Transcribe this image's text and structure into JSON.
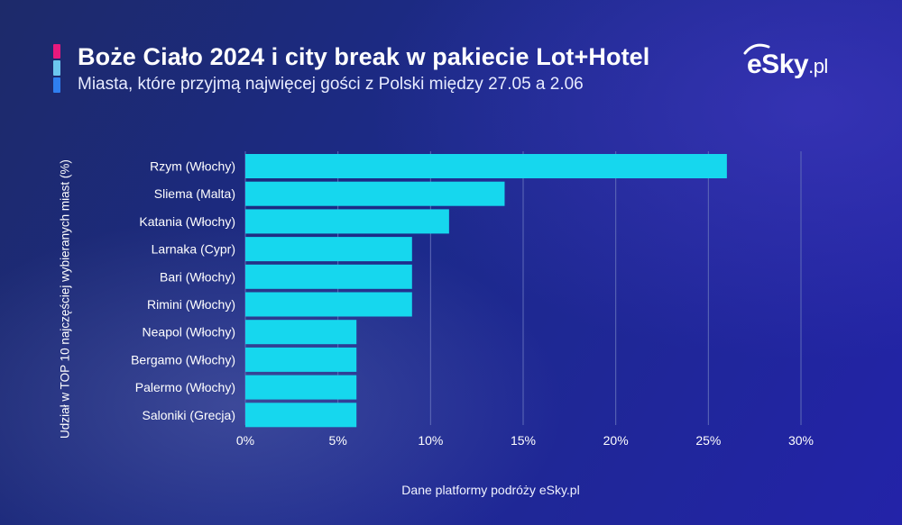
{
  "header": {
    "title": "Boże Ciało 2024 i city break w pakiecie Lot+Hotel",
    "subtitle": "Miasta, które przyjmą najwięcej gości z Polski między 27.05 a 2.06",
    "accent_colors": [
      "#e8197d",
      "#6cc6ee",
      "#2f7ff0"
    ]
  },
  "logo": {
    "text": "eSky",
    "suffix": ".pl"
  },
  "footer": {
    "source": "Dane platformy podróży eSky.pl"
  },
  "colors": {
    "bar": "#16d7ee",
    "grid": "#5f6bb8",
    "background": "#1e2a86"
  },
  "chart_data": {
    "type": "bar",
    "orientation": "horizontal",
    "title": "",
    "xlabel": "",
    "ylabel": "Udział w TOP 10 najczęściej wybieranych miast (%)",
    "categories": [
      "Rzym (Włochy)",
      "Sliema (Malta)",
      "Katania (Włochy)",
      "Larnaka (Cypr)",
      "Bari (Włochy)",
      "Rimini (Włochy)",
      "Neapol (Włochy)",
      "Bergamo (Włochy)",
      "Palermo (Włochy)",
      "Saloniki (Grecja)"
    ],
    "values": [
      26,
      14,
      11,
      9,
      9,
      9,
      6,
      6,
      6,
      6
    ],
    "xlim": [
      0,
      30
    ],
    "ticks": [
      0,
      5,
      10,
      15,
      20,
      25,
      30
    ],
    "tick_labels": [
      "0%",
      "5%",
      "10%",
      "15%",
      "20%",
      "25%",
      "30%"
    ],
    "grid": "vertical",
    "legend": "none"
  }
}
